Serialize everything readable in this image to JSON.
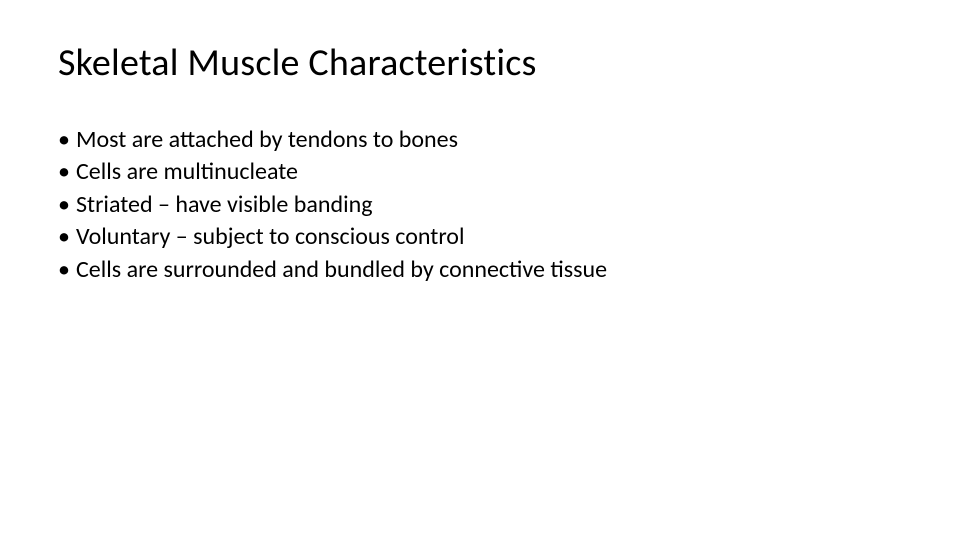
{
  "slide": {
    "title": "Skeletal Muscle Characteristics",
    "bullets": [
      "Most are attached by tendons to bones",
      "Cells are multinucleate",
      "Striated – have visible banding",
      "Voluntary – subject to conscious control",
      "Cells are surrounded and bundled by connective tissue"
    ],
    "background_color": "#ffffff",
    "text_color": "#000000",
    "title_fontsize": 38,
    "bullet_fontsize": 24,
    "font_family": "Calibri"
  }
}
